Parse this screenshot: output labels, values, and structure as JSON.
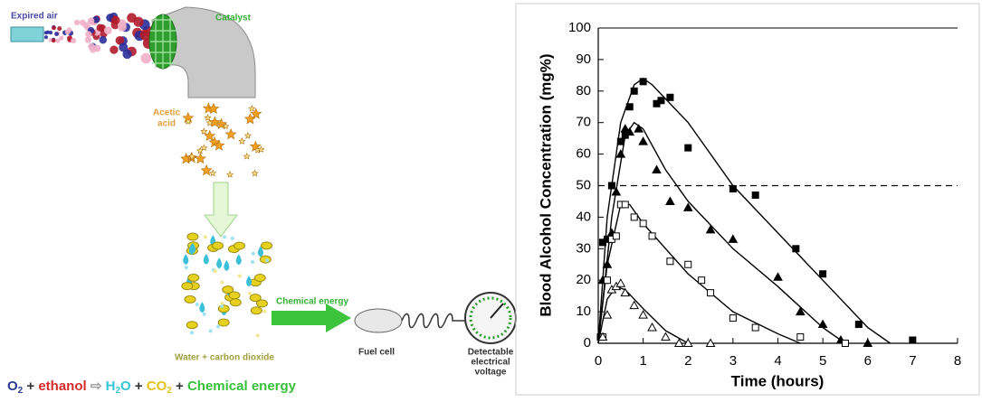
{
  "diagram": {
    "expired_air": "Expired air",
    "catalyst": "Catalyst",
    "acetic_acid": [
      "Acetic",
      "acid"
    ],
    "chemical_energy": "Chemical energy",
    "water_co2": "Water + carbon dioxide",
    "fuel_cell": "Fuel cell",
    "voltage": [
      "Detectable",
      "electrical",
      "voltage"
    ],
    "equation": [
      {
        "text": "O",
        "color": "#2b3a8c"
      },
      {
        "text": "2",
        "sub": true,
        "color": "#2b3a8c"
      },
      {
        "text": " + ",
        "color": "#333333"
      },
      {
        "text": "ethanol",
        "color": "#d42a2a"
      },
      {
        "text": " ⇨ ",
        "color": "#9a9a9a"
      },
      {
        "text": "H",
        "color": "#35c6d8"
      },
      {
        "text": "2",
        "sub": true,
        "color": "#35c6d8"
      },
      {
        "text": "O",
        "color": "#35c6d8"
      },
      {
        "text": " + ",
        "color": "#333333"
      },
      {
        "text": "CO",
        "color": "#e0c21e"
      },
      {
        "text": "2",
        "sub": true,
        "color": "#e0c21e"
      },
      {
        "text": " + ",
        "color": "#333333"
      },
      {
        "text": "Chemical energy",
        "color": "#39c03a"
      }
    ]
  },
  "chart_data": {
    "type": "scatter",
    "x_label": "Time (hours)",
    "y_label": "Blood Alcohol Concentration (mg%)",
    "xlim": [
      0,
      8
    ],
    "xticks": [
      0,
      1,
      2,
      3,
      4,
      5,
      6,
      7,
      8
    ],
    "ylim": [
      0,
      100
    ],
    "yticks": [
      0,
      10,
      20,
      30,
      40,
      50,
      60,
      70,
      80,
      90,
      100
    ],
    "grid": false,
    "hlines": [
      {
        "value": 50,
        "style": "dashed"
      }
    ],
    "series": [
      {
        "marker": "square",
        "filled": true,
        "color": "#000000",
        "x": [
          0.05,
          0.1,
          0.2,
          0.3,
          0.5,
          0.6,
          0.7,
          0.8,
          1.0,
          1.3,
          1.4,
          1.6,
          2.0,
          3.0,
          3.5,
          4.4,
          5.0,
          5.8,
          7.0
        ],
        "values": [
          2,
          32,
          33,
          50,
          64,
          66,
          75,
          80,
          83,
          76,
          77,
          78,
          62,
          49,
          47,
          30,
          22,
          6,
          1
        ],
        "curve": {
          "x": [
            0,
            0.2,
            0.5,
            0.8,
            1.0,
            1.2,
            2,
            3,
            4,
            5,
            6,
            6.5
          ],
          "values": [
            0,
            40,
            70,
            82,
            84,
            82,
            70,
            50,
            35,
            20,
            5,
            0
          ]
        }
      },
      {
        "marker": "triangle",
        "filled": true,
        "color": "#000000",
        "x": [
          0.1,
          0.2,
          0.3,
          0.4,
          0.5,
          0.6,
          0.7,
          0.9,
          1.0,
          1.3,
          1.6,
          2.0,
          2.5,
          3.0,
          4.0,
          4.5,
          5.0,
          5.4,
          6.0
        ],
        "values": [
          20,
          25,
          35,
          48,
          60,
          68,
          67,
          68,
          64,
          55,
          45,
          43,
          36,
          33,
          21,
          10,
          6,
          1,
          0
        ],
        "curve": {
          "x": [
            0,
            0.3,
            0.6,
            0.8,
            1.0,
            1.5,
            2,
            3,
            4,
            5,
            5.5
          ],
          "values": [
            0,
            40,
            66,
            70,
            68,
            55,
            45,
            30,
            18,
            5,
            0
          ]
        }
      },
      {
        "marker": "square",
        "filled": false,
        "color": "#000000",
        "x": [
          0.1,
          0.2,
          0.3,
          0.4,
          0.5,
          0.6,
          0.8,
          1.0,
          1.2,
          1.6,
          2.0,
          2.3,
          2.5,
          3.0,
          3.5,
          4.5,
          5.5
        ],
        "values": [
          2,
          20,
          33,
          34,
          44,
          44,
          40,
          38,
          34,
          26,
          25,
          20,
          16,
          8,
          5,
          2,
          0
        ],
        "curve": {
          "x": [
            0,
            0.2,
            0.5,
            0.7,
            1,
            2,
            3,
            4,
            4.5
          ],
          "values": [
            0,
            25,
            44,
            44,
            38,
            22,
            10,
            3,
            0
          ]
        }
      },
      {
        "marker": "triangle",
        "filled": false,
        "color": "#000000",
        "x": [
          0.1,
          0.2,
          0.3,
          0.4,
          0.5,
          0.6,
          0.8,
          1.0,
          1.2,
          1.5,
          1.8,
          2.0,
          2.5
        ],
        "values": [
          2,
          9,
          17,
          18,
          19,
          16,
          12,
          9,
          5,
          2,
          0,
          0,
          0
        ],
        "curve": {
          "x": [
            0,
            0.2,
            0.4,
            0.6,
            1,
            1.5,
            2
          ],
          "values": [
            0,
            14,
            18,
            17,
            11,
            4,
            0
          ]
        }
      }
    ]
  }
}
